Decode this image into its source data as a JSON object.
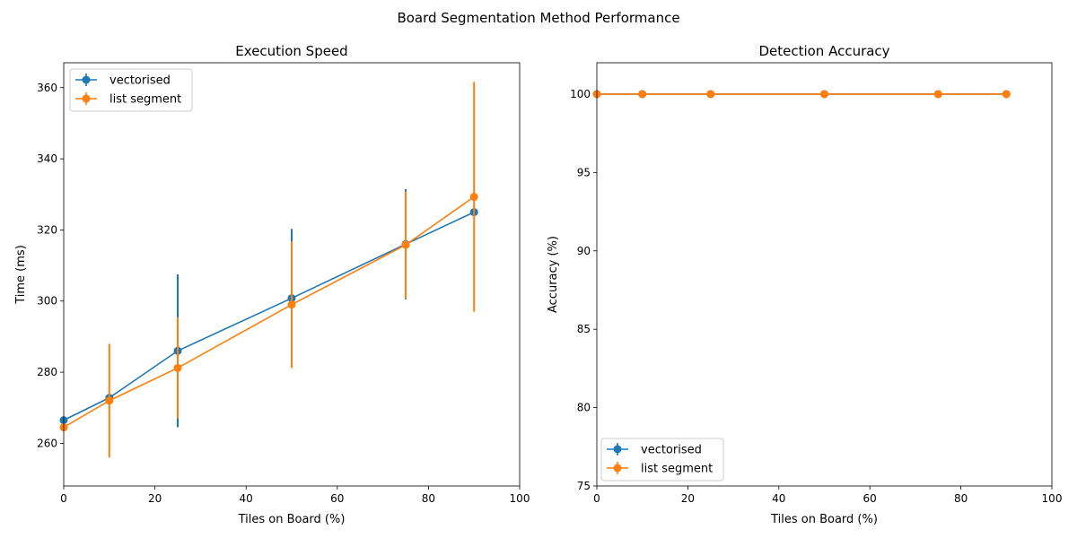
{
  "suptitle": "Board Segmentation Method Performance",
  "colors": {
    "vectorised": "#1f77b4",
    "list_segment": "#ff7f0e"
  },
  "chart_data": [
    {
      "type": "line",
      "title": "Execution Speed",
      "xlabel": "Tiles on Board (%)",
      "ylabel": "Time (ms)",
      "xlim": [
        0,
        100
      ],
      "ylim": [
        248,
        367
      ],
      "xticks": [
        0,
        20,
        40,
        60,
        80,
        100
      ],
      "yticks": [
        260,
        280,
        300,
        320,
        340,
        360
      ],
      "legend_position": "upper-left",
      "x": [
        0,
        10,
        25,
        50,
        75,
        90
      ],
      "series": [
        {
          "name": "vectorised",
          "values": [
            266.5,
            272.8,
            286.0,
            300.8,
            316.0,
            325.0
          ],
          "errors": [
            0,
            0,
            21.5,
            19.5,
            15.5,
            0
          ]
        },
        {
          "name": "list segment",
          "values": [
            264.5,
            272.0,
            281.2,
            299.0,
            315.8,
            329.3
          ],
          "errors": [
            0,
            16.0,
            14.2,
            17.8,
            15.0,
            32.3
          ]
        }
      ]
    },
    {
      "type": "line",
      "title": "Detection Accuracy",
      "xlabel": "Tiles on Board (%)",
      "ylabel": "Accuracy (%)",
      "xlim": [
        0,
        100
      ],
      "ylim": [
        75,
        102
      ],
      "xticks": [
        0,
        20,
        40,
        60,
        80,
        100
      ],
      "yticks": [
        75,
        80,
        85,
        90,
        95,
        100
      ],
      "legend_position": "lower-left",
      "x": [
        0,
        10,
        25,
        50,
        75,
        90
      ],
      "series": [
        {
          "name": "vectorised",
          "values": [
            100,
            100,
            100,
            100,
            100,
            100
          ],
          "errors": [
            0,
            0,
            0,
            0,
            0,
            0
          ]
        },
        {
          "name": "list segment",
          "values": [
            100,
            100,
            100,
            100,
            100,
            100
          ],
          "errors": [
            0,
            0,
            0,
            0,
            0,
            0
          ]
        }
      ]
    }
  ]
}
